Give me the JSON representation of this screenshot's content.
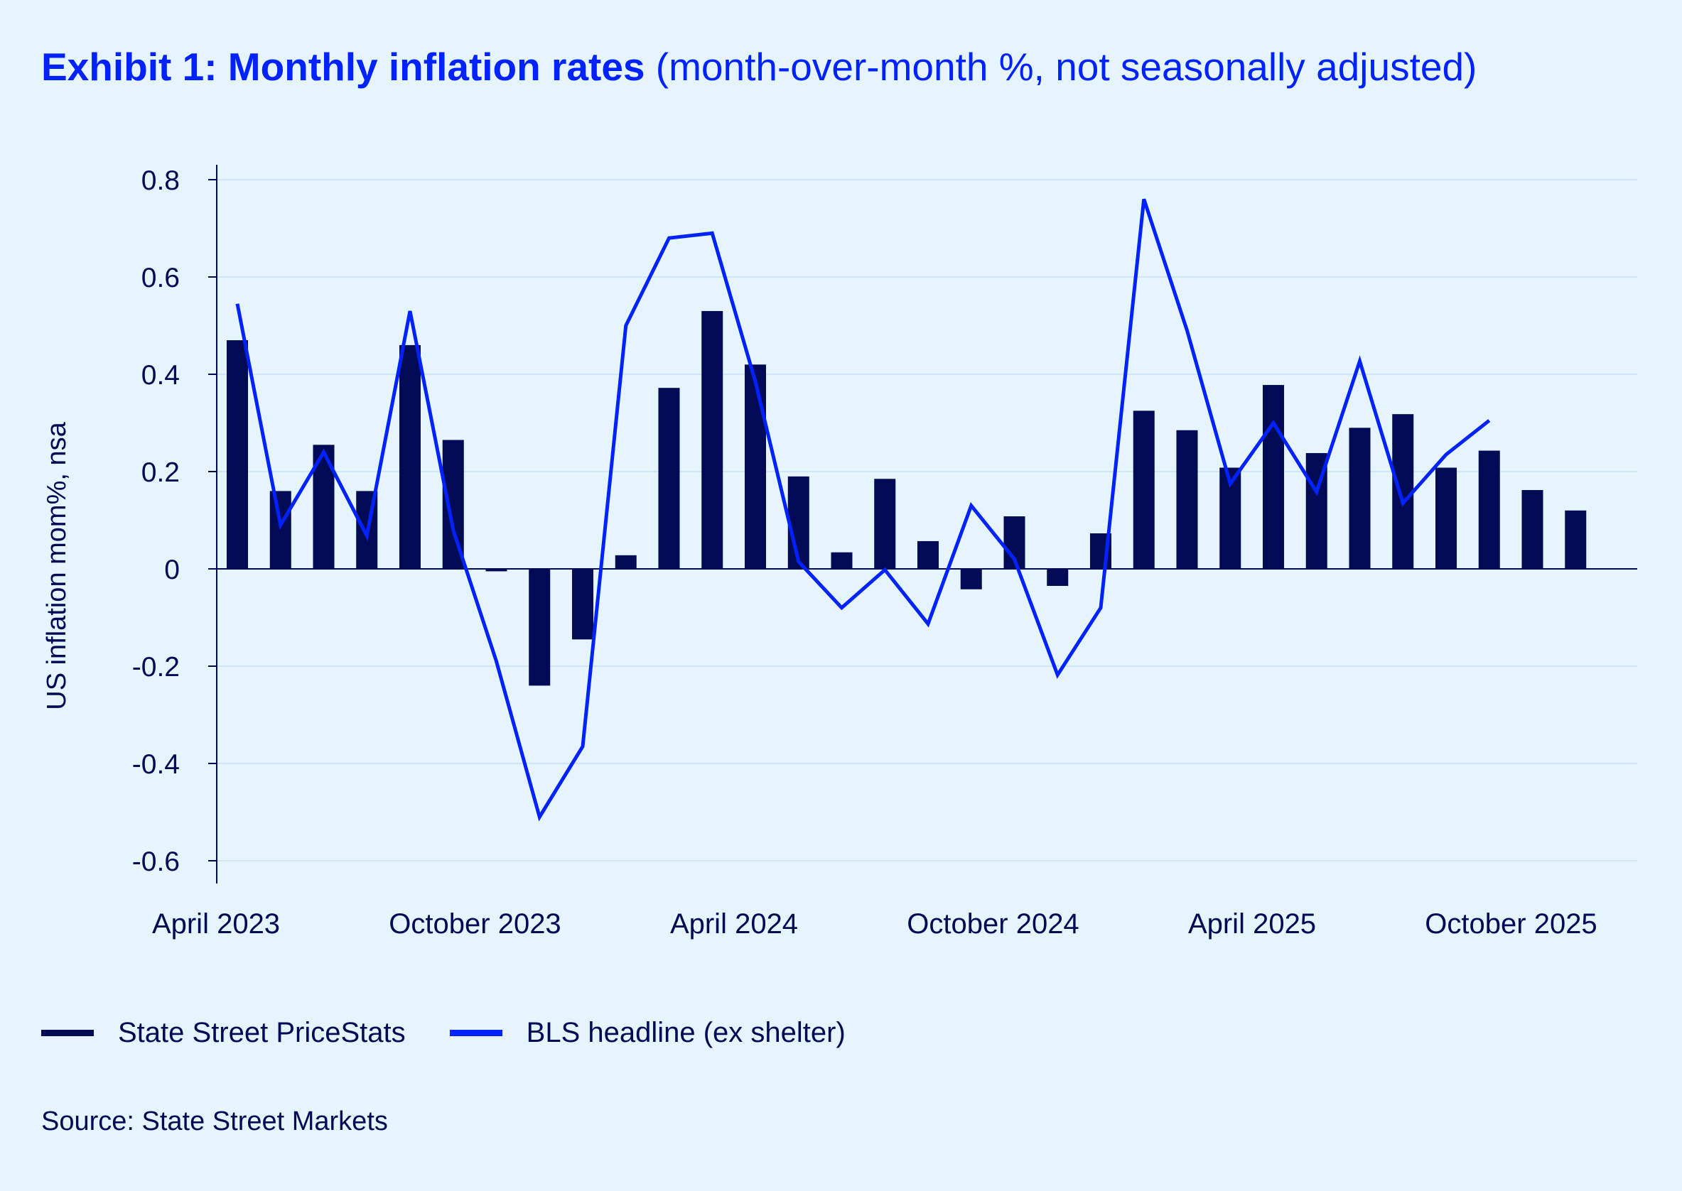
{
  "title": {
    "bold": "Exhibit 1: Monthly inflation rates",
    "subtitle": "(month-over-month %, not seasonally adjusted)"
  },
  "source": "Source: State Street Markets",
  "colors": {
    "background": "#e6f4fd",
    "bars": "#000a55",
    "line": "#0022ff",
    "grid": "#cde6fa"
  },
  "chart_data": {
    "type": "bar",
    "title": "Exhibit 1: Monthly inflation rates (month-over-month %, not seasonally adjusted)",
    "xlabel": "",
    "ylabel": "US inflation mom%, nsa",
    "ylim": [
      -0.6,
      0.8
    ],
    "yticks": [
      0.8,
      0.6,
      0.4,
      0.2,
      0,
      -0.2,
      -0.4,
      -0.6
    ],
    "ytick_labels": [
      "0.8",
      "0.6",
      "0.4",
      "0.2",
      "0",
      "-0.2",
      "-0.4",
      "-0.6"
    ],
    "xtick_labels": [
      {
        "label": "April 2023",
        "index": 0
      },
      {
        "label": "October 2023",
        "index": 6
      },
      {
        "label": "April 2024",
        "index": 12
      },
      {
        "label": "October 2024",
        "index": 18
      },
      {
        "label": "April 2025",
        "index": 24
      },
      {
        "label": "October 2025",
        "index": 30
      }
    ],
    "grid": true,
    "legend_position": "bottom-left",
    "categories": [
      "Apr 2023",
      "May 2023",
      "Jun 2023",
      "Jul 2023",
      "Aug 2023",
      "Sep 2023",
      "Oct 2023",
      "Nov 2023",
      "Dec 2023",
      "Jan 2024",
      "Feb 2024",
      "Mar 2024",
      "Apr 2024",
      "May 2024",
      "Jun 2024",
      "Jul 2024",
      "Aug 2024",
      "Sep 2024",
      "Oct 2024",
      "Nov 2024",
      "Dec 2024",
      "Jan 2025",
      "Feb 2025",
      "Mar 2025",
      "Apr 2025",
      "May 2025",
      "Jun 2025",
      "Jul 2025",
      "Aug 2025",
      "Sep 2025",
      "Oct 2025",
      "Nov 2025"
    ],
    "series": [
      {
        "name": "State Street PriceStats",
        "type": "bar",
        "values": [
          0.47,
          0.16,
          0.255,
          0.16,
          0.46,
          0.265,
          -0.005,
          -0.24,
          -0.145,
          0.028,
          0.372,
          0.53,
          0.42,
          0.19,
          0.034,
          0.185,
          0.057,
          -0.042,
          0.108,
          -0.035,
          0.073,
          0.325,
          0.285,
          0.208,
          0.378,
          0.238,
          0.29,
          0.318,
          0.208,
          0.243,
          0.162,
          0.12
        ]
      },
      {
        "name": "BLS headline (ex shelter)",
        "type": "line",
        "values": [
          0.545,
          0.09,
          0.24,
          0.068,
          0.53,
          0.08,
          -0.19,
          -0.51,
          -0.365,
          0.5,
          0.68,
          0.69,
          0.385,
          0.015,
          -0.08,
          -0.002,
          -0.113,
          0.13,
          0.02,
          -0.218,
          -0.08,
          0.76,
          0.49,
          0.175,
          0.3,
          0.158,
          0.427,
          0.135,
          0.235,
          0.305,
          null,
          null
        ]
      }
    ]
  }
}
